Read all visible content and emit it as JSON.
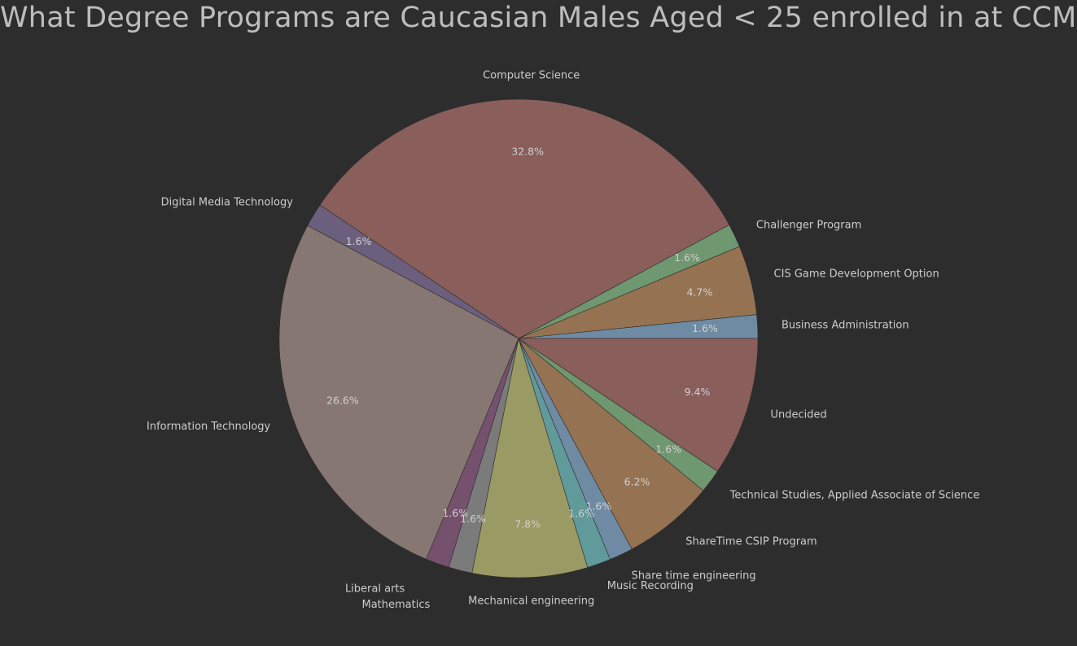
{
  "chart_data": {
    "type": "pie",
    "title": "What Degree Programs are Caucasian Males Aged < 25 enrolled in at CCM",
    "start_angle_deg": 0,
    "direction": "counterclockwise",
    "slices": [
      {
        "label": "Business Administration",
        "value": 1.6,
        "pct_label": "1.6%",
        "color": "#6f8ba3"
      },
      {
        "label": "CIS Game Development Option",
        "value": 4.7,
        "pct_label": "4.7%",
        "color": "#957352"
      },
      {
        "label": "Challenger Program",
        "value": 1.6,
        "pct_label": "1.6%",
        "color": "#6f9770"
      },
      {
        "label": "Computer Science",
        "value": 32.8,
        "pct_label": "32.8%",
        "color": "#8a5e5b"
      },
      {
        "label": "Digital Media Technology",
        "value": 1.6,
        "pct_label": "1.6%",
        "color": "#6c5f7d"
      },
      {
        "label": "Information Technology",
        "value": 26.6,
        "pct_label": "26.6%",
        "color": "#877772"
      },
      {
        "label": "Liberal arts",
        "value": 1.6,
        "pct_label": "1.6%",
        "color": "#75516d"
      },
      {
        "label": "Mathematics",
        "value": 1.6,
        "pct_label": "1.6%",
        "color": "#7b7b7b"
      },
      {
        "label": "Mechanical engineering",
        "value": 7.8,
        "pct_label": "7.8%",
        "color": "#9a9a64"
      },
      {
        "label": "Music Recording",
        "value": 1.6,
        "pct_label": "1.6%",
        "color": "#609a9a"
      },
      {
        "label": "Share time engineering",
        "value": 1.6,
        "pct_label": "1.6%",
        "color": "#6f8ba3"
      },
      {
        "label": "ShareTime CSIP Program",
        "value": 6.2,
        "pct_label": "6.2%",
        "color": "#957352"
      },
      {
        "label": "Technical Studies, Applied Associate of Science",
        "value": 1.6,
        "pct_label": "1.6%",
        "color": "#6f9770"
      },
      {
        "label": "Undecided",
        "value": 9.4,
        "pct_label": "9.4%",
        "color": "#8a5e5b"
      }
    ]
  }
}
